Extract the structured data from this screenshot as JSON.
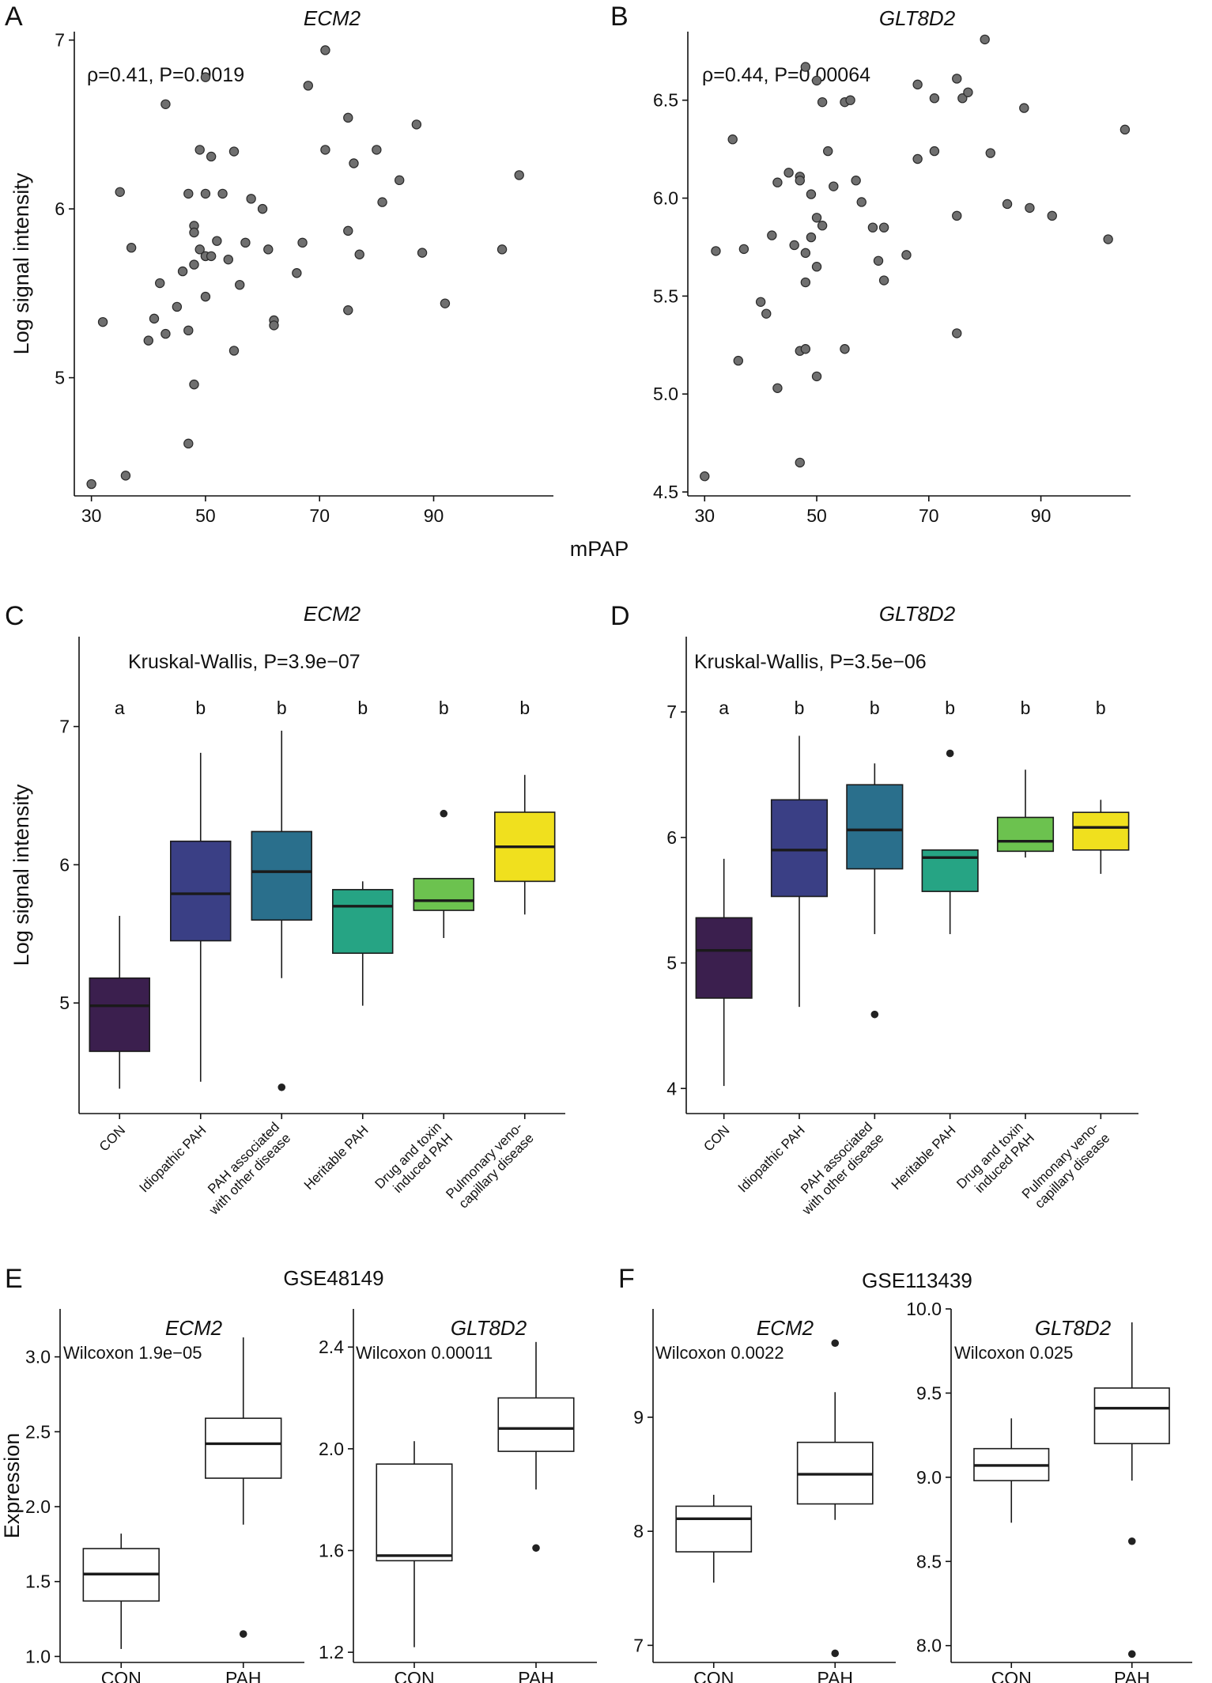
{
  "chart_data": [
    {
      "panel": "A",
      "type": "scatter",
      "title": "ECM2",
      "annotation": "ρ=0.41, P=0.0019",
      "xlabel": "mPAP",
      "ylabel": "Log signal intensity",
      "xlim": [
        27,
        111
      ],
      "ylim": [
        4.3,
        7.05
      ],
      "xticks": [
        30,
        50,
        70,
        90
      ],
      "yticks": [
        5,
        6,
        7
      ],
      "points": [
        [
          30,
          4.37
        ],
        [
          32,
          5.33
        ],
        [
          35,
          6.1
        ],
        [
          36,
          4.42
        ],
        [
          37,
          5.77
        ],
        [
          40,
          5.22
        ],
        [
          41,
          5.35
        ],
        [
          42,
          5.56
        ],
        [
          43,
          6.62
        ],
        [
          43,
          5.26
        ],
        [
          45,
          5.42
        ],
        [
          46,
          5.63
        ],
        [
          47,
          6.09
        ],
        [
          47,
          5.28
        ],
        [
          47,
          4.61
        ],
        [
          48,
          5.9
        ],
        [
          48,
          5.86
        ],
        [
          48,
          5.67
        ],
        [
          48,
          4.96
        ],
        [
          49,
          5.76
        ],
        [
          49,
          6.35
        ],
        [
          50,
          5.72
        ],
        [
          50,
          5.72
        ],
        [
          50,
          6.09
        ],
        [
          50,
          6.78
        ],
        [
          50,
          5.48
        ],
        [
          51,
          5.72
        ],
        [
          51,
          6.31
        ],
        [
          52,
          5.81
        ],
        [
          53,
          6.09
        ],
        [
          54,
          5.7
        ],
        [
          55,
          6.34
        ],
        [
          55,
          5.16
        ],
        [
          56,
          5.55
        ],
        [
          57,
          5.8
        ],
        [
          58,
          6.06
        ],
        [
          60,
          6.0
        ],
        [
          61,
          5.76
        ],
        [
          62,
          5.34
        ],
        [
          62,
          5.31
        ],
        [
          66,
          5.62
        ],
        [
          67,
          5.8
        ],
        [
          68,
          6.73
        ],
        [
          71,
          6.94
        ],
        [
          71,
          6.35
        ],
        [
          75,
          5.87
        ],
        [
          75,
          5.4
        ],
        [
          75,
          6.54
        ],
        [
          76,
          6.27
        ],
        [
          77,
          5.73
        ],
        [
          80,
          6.35
        ],
        [
          81,
          6.04
        ],
        [
          84,
          6.17
        ],
        [
          87,
          6.5
        ],
        [
          88,
          5.74
        ],
        [
          92,
          5.44
        ],
        [
          102,
          5.76
        ],
        [
          105,
          6.2
        ]
      ]
    },
    {
      "panel": "B",
      "type": "scatter",
      "title": "GLT8D2",
      "annotation": "ρ=0.44, P=0.00064",
      "xlabel": "mPAP",
      "ylabel": "",
      "xlim": [
        27,
        106
      ],
      "ylim": [
        4.48,
        6.85
      ],
      "xticks": [
        30,
        50,
        70,
        90
      ],
      "yticks": [
        4.5,
        5.0,
        5.5,
        6.0,
        6.5
      ],
      "points": [
        [
          30,
          4.58
        ],
        [
          32,
          5.73
        ],
        [
          35,
          6.3
        ],
        [
          36,
          5.17
        ],
        [
          37,
          5.74
        ],
        [
          40,
          5.47
        ],
        [
          41,
          5.41
        ],
        [
          42,
          5.81
        ],
        [
          43,
          6.08
        ],
        [
          43,
          5.03
        ],
        [
          45,
          6.13
        ],
        [
          46,
          5.76
        ],
        [
          47,
          6.11
        ],
        [
          47,
          6.09
        ],
        [
          47,
          5.22
        ],
        [
          47,
          4.65
        ],
        [
          48,
          6.67
        ],
        [
          48,
          5.57
        ],
        [
          48,
          5.23
        ],
        [
          48,
          5.72
        ],
        [
          49,
          6.02
        ],
        [
          49,
          5.8
        ],
        [
          50,
          5.9
        ],
        [
          50,
          5.65
        ],
        [
          50,
          5.09
        ],
        [
          50,
          6.6
        ],
        [
          51,
          5.86
        ],
        [
          51,
          6.49
        ],
        [
          52,
          6.24
        ],
        [
          53,
          6.06
        ],
        [
          55,
          6.49
        ],
        [
          55,
          5.23
        ],
        [
          56,
          6.5
        ],
        [
          57,
          6.09
        ],
        [
          58,
          5.98
        ],
        [
          60,
          5.85
        ],
        [
          61,
          5.68
        ],
        [
          62,
          5.85
        ],
        [
          62,
          5.58
        ],
        [
          66,
          5.71
        ],
        [
          68,
          6.2
        ],
        [
          68,
          6.58
        ],
        [
          71,
          6.24
        ],
        [
          71,
          6.51
        ],
        [
          75,
          6.61
        ],
        [
          75,
          5.91
        ],
        [
          75,
          5.31
        ],
        [
          76,
          6.51
        ],
        [
          77,
          6.54
        ],
        [
          80,
          6.81
        ],
        [
          81,
          6.23
        ],
        [
          84,
          5.97
        ],
        [
          87,
          6.46
        ],
        [
          88,
          5.95
        ],
        [
          92,
          5.91
        ],
        [
          102,
          5.79
        ],
        [
          105,
          6.35
        ]
      ]
    },
    {
      "panel": "C",
      "type": "box",
      "title": "ECM2",
      "annotation": "Kruskal-Wallis, P=3.9e−07",
      "ylabel": "Log signal intensity",
      "ylim": [
        4.2,
        7.65
      ],
      "yticks": [
        5,
        6,
        7
      ],
      "categories": [
        "CON",
        "Idiopathic PAH",
        "PAH associated\nwith other disease",
        "Heritable PAH",
        "Drug and toxin\ninduced PAH",
        "Pulmonary veno-\ncapillary disease"
      ],
      "letters": [
        "a",
        "b",
        "b",
        "b",
        "b",
        "b"
      ],
      "colors": [
        "#3b1f4e",
        "#3a3f85",
        "#2a6f8c",
        "#26a484",
        "#6cc24f",
        "#f0e01e"
      ],
      "boxes": [
        {
          "lower": 4.38,
          "q1": 4.65,
          "median": 4.98,
          "q3": 5.18,
          "upper": 5.63,
          "outliers": []
        },
        {
          "lower": 4.43,
          "q1": 5.45,
          "median": 5.79,
          "q3": 6.17,
          "upper": 6.81,
          "outliers": []
        },
        {
          "lower": 5.18,
          "q1": 5.6,
          "median": 5.95,
          "q3": 6.24,
          "upper": 6.97,
          "outliers": [
            4.39
          ]
        },
        {
          "lower": 4.98,
          "q1": 5.36,
          "median": 5.7,
          "q3": 5.82,
          "upper": 5.88,
          "outliers": []
        },
        {
          "lower": 5.47,
          "q1": 5.67,
          "median": 5.74,
          "q3": 5.9,
          "upper": 5.9,
          "outliers": [
            6.37
          ]
        },
        {
          "lower": 5.64,
          "q1": 5.88,
          "median": 6.13,
          "q3": 6.38,
          "upper": 6.65,
          "outliers": []
        }
      ]
    },
    {
      "panel": "D",
      "type": "box",
      "title": "GLT8D2",
      "annotation": "Kruskal-Wallis, P=3.5e−06",
      "ylabel": "",
      "ylim": [
        3.8,
        7.6
      ],
      "yticks": [
        4,
        5,
        6,
        7
      ],
      "categories": [
        "CON",
        "Idiopathic PAH",
        "PAH associated\nwith other disease",
        "Heritable PAH",
        "Drug and toxin\ninduced PAH",
        "Pulmonary veno-\ncapillary disease"
      ],
      "letters": [
        "a",
        "b",
        "b",
        "b",
        "b",
        "b"
      ],
      "colors": [
        "#3b1f4e",
        "#3a3f85",
        "#2a6f8c",
        "#26a484",
        "#6cc24f",
        "#f0e01e"
      ],
      "boxes": [
        {
          "lower": 4.02,
          "q1": 4.72,
          "median": 5.1,
          "q3": 5.36,
          "upper": 5.83,
          "outliers": []
        },
        {
          "lower": 4.65,
          "q1": 5.53,
          "median": 5.9,
          "q3": 6.3,
          "upper": 6.81,
          "outliers": []
        },
        {
          "lower": 5.23,
          "q1": 5.75,
          "median": 6.06,
          "q3": 6.42,
          "upper": 6.59,
          "outliers": [
            4.59
          ]
        },
        {
          "lower": 5.23,
          "q1": 5.57,
          "median": 5.84,
          "q3": 5.9,
          "upper": 5.9,
          "outliers": [
            6.67
          ]
        },
        {
          "lower": 5.84,
          "q1": 5.89,
          "median": 5.97,
          "q3": 6.16,
          "upper": 6.54,
          "outliers": []
        },
        {
          "lower": 5.71,
          "q1": 5.9,
          "median": 6.08,
          "q3": 6.2,
          "upper": 6.3,
          "outliers": []
        }
      ]
    },
    {
      "panel": "E",
      "type": "box",
      "dataset": "GSE48149",
      "title": "ECM2",
      "annotation": "Wilcoxon 1.9e−05",
      "ylabel": "Expression",
      "ylim": [
        0.96,
        3.32
      ],
      "yticks": [
        1.0,
        1.5,
        2.0,
        2.5,
        3.0
      ],
      "ytick_labels": [
        "1.0",
        "1.5",
        "2.0",
        "2.5",
        "3.0"
      ],
      "categories": [
        "CON",
        "PAH"
      ],
      "boxes": [
        {
          "lower": 1.05,
          "q1": 1.37,
          "median": 1.55,
          "q3": 1.72,
          "upper": 1.82,
          "outliers": []
        },
        {
          "lower": 1.88,
          "q1": 2.19,
          "median": 2.42,
          "q3": 2.59,
          "upper": 3.13,
          "outliers": [
            1.15
          ]
        }
      ]
    },
    {
      "panel": "E",
      "type": "box",
      "dataset": "GSE48149",
      "title": "GLT8D2",
      "annotation": "Wilcoxon 0.00011",
      "ylabel": "",
      "ylim": [
        1.16,
        2.55
      ],
      "yticks": [
        1.2,
        1.6,
        2.0,
        2.4
      ],
      "ytick_labels": [
        "1.2",
        "1.6",
        "2.0",
        "2.4"
      ],
      "categories": [
        "CON",
        "PAH"
      ],
      "boxes": [
        {
          "lower": 1.22,
          "q1": 1.56,
          "median": 1.58,
          "q3": 1.94,
          "upper": 2.03,
          "outliers": []
        },
        {
          "lower": 1.84,
          "q1": 1.99,
          "median": 2.08,
          "q3": 2.2,
          "upper": 2.42,
          "outliers": [
            1.61
          ]
        }
      ]
    },
    {
      "panel": "F",
      "type": "box",
      "dataset": "GSE113439",
      "title": "ECM2",
      "annotation": "Wilcoxon 0.0022",
      "ylabel": "",
      "ylim": [
        6.85,
        9.95
      ],
      "yticks": [
        7,
        8,
        9
      ],
      "ytick_labels": [
        "7",
        "8",
        "9"
      ],
      "categories": [
        "CON",
        "PAH"
      ],
      "boxes": [
        {
          "lower": 7.55,
          "q1": 7.82,
          "median": 8.11,
          "q3": 8.22,
          "upper": 8.32,
          "outliers": []
        },
        {
          "lower": 8.1,
          "q1": 8.24,
          "median": 8.5,
          "q3": 8.78,
          "upper": 9.22,
          "outliers": [
            9.65,
            6.93
          ]
        }
      ]
    },
    {
      "panel": "F",
      "type": "box",
      "dataset": "GSE113439",
      "title": "GLT8D2",
      "annotation": "Wilcoxon 0.025",
      "ylabel": "",
      "ylim": [
        7.9,
        10.0
      ],
      "yticks": [
        8.0,
        8.5,
        9.0,
        9.5,
        10.0
      ],
      "ytick_labels": [
        "8.0",
        "8.5",
        "9.0",
        "9.5",
        "10.0"
      ],
      "categories": [
        "CON",
        "PAH"
      ],
      "boxes": [
        {
          "lower": 8.73,
          "q1": 8.98,
          "median": 9.07,
          "q3": 9.17,
          "upper": 9.35,
          "outliers": []
        },
        {
          "lower": 8.98,
          "q1": 9.2,
          "median": 9.41,
          "q3": 9.53,
          "upper": 9.92,
          "outliers": [
            8.62,
            7.95
          ]
        }
      ]
    }
  ],
  "labels": {
    "panel_letters": [
      "A",
      "B",
      "C",
      "D",
      "E",
      "F"
    ],
    "shared_xlabel": "mPAP",
    "dataset_E": "GSE48149",
    "dataset_F": "GSE113439"
  }
}
